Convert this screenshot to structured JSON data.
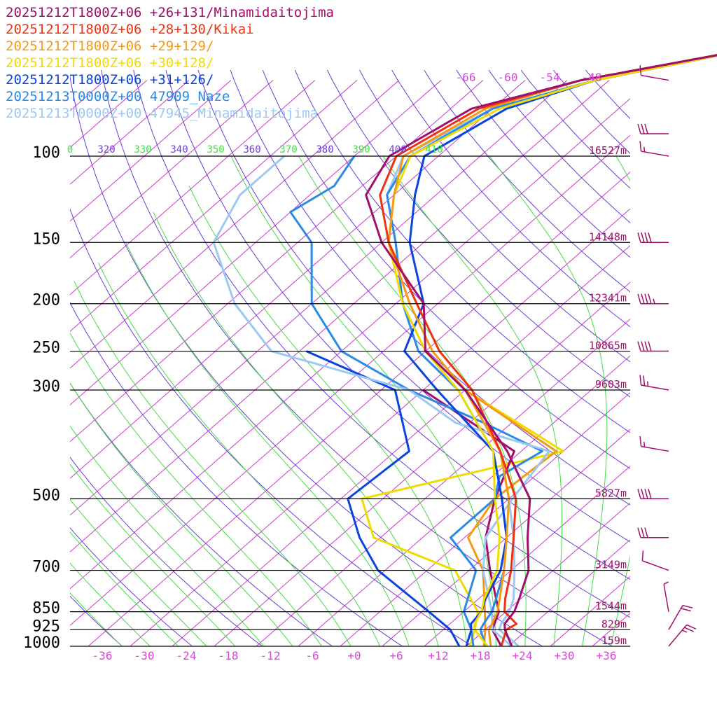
{
  "colors": {
    "isobar": "#000000",
    "isotherm": "#cc33cc",
    "dry_adiabat": "#6a3dd6",
    "moist_adiabat": "#44dd44",
    "height_label": "#a0106a",
    "temp_label": "#dd44dd",
    "wind_barb": "#a0106a"
  },
  "chart_data": {
    "type": "skew-t",
    "pressure_levels": [
      {
        "p": 100,
        "label": "100",
        "height": "16527m"
      },
      {
        "p": 150,
        "label": "150",
        "height": "14148m"
      },
      {
        "p": 200,
        "label": "200",
        "height": "12341m"
      },
      {
        "p": 250,
        "label": "250",
        "height": "10865m"
      },
      {
        "p": 300,
        "label": "300",
        "height": "9603m"
      },
      {
        "p": 500,
        "label": "500",
        "height": "5827m"
      },
      {
        "p": 700,
        "label": "700",
        "height": "3149m"
      },
      {
        "p": 850,
        "label": "850",
        "height": "1544m"
      },
      {
        "p": 925,
        "label": "925",
        "height": "829m"
      },
      {
        "p": 1000,
        "label": "1000",
        "height": "159m"
      }
    ],
    "temperature_ticks": [
      "-36",
      "-30",
      "-24",
      "-18",
      "-12",
      "-6",
      "+0",
      "+6",
      "+12",
      "+18",
      "+24",
      "+30",
      "+36"
    ],
    "temperature_tick_values": [
      -36,
      -30,
      -24,
      -18,
      -12,
      -6,
      0,
      6,
      12,
      18,
      24,
      30,
      36
    ],
    "upper_temperature_labels": [
      "-66",
      "-60",
      "-54",
      "-48"
    ],
    "upper_temperature_values": [
      -66,
      -60,
      -54,
      -48
    ],
    "theta_labels": [
      {
        "text": "0",
        "color": "#44dd44"
      },
      {
        "text": "320",
        "color": "#6a3dd6"
      },
      {
        "text": "330",
        "color": "#44dd44"
      },
      {
        "text": "340",
        "color": "#6a3dd6"
      },
      {
        "text": "350",
        "color": "#44dd44"
      },
      {
        "text": "360",
        "color": "#6a3dd6"
      },
      {
        "text": "370",
        "color": "#44dd44"
      },
      {
        "text": "380",
        "color": "#6a3dd6"
      },
      {
        "text": "390",
        "color": "#44dd44"
      },
      {
        "text": "400",
        "color": "#6a3dd6"
      },
      {
        "text": "410",
        "color": "#44dd44"
      }
    ],
    "dry_adiabats": [
      250,
      260,
      270,
      280,
      290,
      300,
      310,
      320,
      330
    ],
    "moist_adiabats": [
      250,
      260,
      270,
      280,
      290,
      300,
      310
    ],
    "series": [
      {
        "name": "20251212T1800Z+06 +26+131/Minamidaitojima",
        "color": "#a0106a",
        "points": [
          [
            1000,
            22.5
          ],
          [
            925,
            18.8
          ],
          [
            900,
            17.8
          ],
          [
            850,
            17.2
          ],
          [
            800,
            15.8
          ],
          [
            700,
            12.5
          ],
          [
            600,
            7.0
          ],
          [
            500,
            1.0
          ],
          [
            400,
            -10.0
          ],
          [
            300,
            -26.0
          ],
          [
            250,
            -38.0
          ],
          [
            200,
            -46.0
          ],
          [
            150,
            -62.0
          ],
          [
            120,
            -72.0
          ],
          [
            100,
            -75.0
          ],
          [
            80,
            -71.0
          ],
          [
            70,
            -60.0
          ],
          [
            60,
            -40.0
          ]
        ]
      },
      {
        "name": "20251212T1800Z+06 +28+130/Kikai",
        "color": "#ee3311",
        "points": [
          [
            1000,
            21.0
          ],
          [
            925,
            19.0
          ],
          [
            900,
            19.5
          ],
          [
            850,
            15.8
          ],
          [
            800,
            13.8
          ],
          [
            700,
            10.0
          ],
          [
            600,
            5.0
          ],
          [
            500,
            -1.0
          ],
          [
            400,
            -11.0
          ],
          [
            300,
            -25.0
          ],
          [
            250,
            -36.0
          ],
          [
            200,
            -47.0
          ],
          [
            150,
            -61.0
          ],
          [
            120,
            -70.0
          ],
          [
            100,
            -74.0
          ],
          [
            80,
            -70.0
          ],
          [
            70,
            -60.0
          ],
          [
            60,
            -40.0
          ]
        ]
      },
      {
        "name": "20251212T1800Z+06 +29+129/",
        "color": "#f59a14",
        "points": [
          [
            1000,
            19.5
          ],
          [
            925,
            16.5
          ],
          [
            900,
            16.0
          ],
          [
            850,
            14.8
          ],
          [
            800,
            13.0
          ],
          [
            700,
            9.0
          ],
          [
            600,
            4.0
          ],
          [
            500,
            -2.0
          ],
          [
            400,
            -11.0
          ],
          [
            300,
            -26.0
          ],
          [
            250,
            -37.0
          ],
          [
            200,
            -48.0
          ],
          [
            150,
            -61.0
          ],
          [
            120,
            -68.0
          ],
          [
            100,
            -73.0
          ],
          [
            80,
            -69.0
          ],
          [
            70,
            -60.0
          ],
          [
            60,
            -40.0
          ]
        ]
      },
      {
        "name": "20251212T1800Z+06 +30+128/",
        "color": "#f0dc00",
        "points": [
          [
            1000,
            19.0
          ],
          [
            925,
            14.5
          ],
          [
            900,
            13.5
          ],
          [
            850,
            12.5
          ],
          [
            800,
            10.8
          ],
          [
            700,
            8.0
          ],
          [
            600,
            3.0
          ],
          [
            500,
            -4.0
          ],
          [
            400,
            -12.0
          ],
          [
            300,
            -27.0
          ],
          [
            250,
            -38.0
          ],
          [
            200,
            -49.0
          ],
          [
            150,
            -61.0
          ],
          [
            120,
            -68.0
          ],
          [
            100,
            -72.0
          ],
          [
            80,
            -67.0
          ],
          [
            70,
            -58.0
          ],
          [
            60,
            -40.0
          ]
        ]
      },
      {
        "name": "20251212T1800Z+06 +31+126/",
        "color": "#0a44e0",
        "points": [
          [
            1000,
            16.0
          ],
          [
            925,
            14.0
          ],
          [
            900,
            13.0
          ],
          [
            850,
            12.5
          ],
          [
            800,
            11.0
          ],
          [
            700,
            8.5
          ],
          [
            600,
            4.0
          ],
          [
            500,
            -3.0
          ],
          [
            400,
            -12.0
          ],
          [
            300,
            -30.0
          ],
          [
            250,
            -41.0
          ],
          [
            200,
            -46.0
          ],
          [
            150,
            -58.0
          ],
          [
            120,
            -65.0
          ],
          [
            100,
            -70.0
          ],
          [
            80,
            -66.0
          ],
          [
            70,
            -58.0
          ],
          [
            60,
            -40.0
          ]
        ]
      },
      {
        "name": "20251213T0000Z+00 47909_Naze",
        "color": "#2a8ae8",
        "points": [
          [
            1000,
            18.8
          ],
          [
            925,
            15.3
          ],
          [
            900,
            14.8
          ],
          [
            850,
            14.0
          ],
          [
            800,
            12.5
          ],
          [
            700,
            9.0
          ],
          [
            600,
            4.0
          ],
          [
            500,
            -3.0
          ],
          [
            400,
            -12.0
          ],
          [
            300,
            -27.0
          ],
          [
            250,
            -39.0
          ],
          [
            200,
            -49.0
          ],
          [
            150,
            -60.0
          ],
          [
            120,
            -69.0
          ],
          [
            100,
            -72.0
          ],
          [
            80,
            -68.0
          ],
          [
            70,
            -58.0
          ],
          [
            60,
            -40.0
          ]
        ]
      },
      {
        "name": "20251213T0000Z+00 47945_Minamidaitojima",
        "color": "#9cc8f2",
        "points": [
          [
            1000,
            23.5
          ],
          [
            925,
            18.0
          ],
          [
            900,
            17.3
          ],
          [
            850,
            16.5
          ],
          [
            800,
            15.0
          ],
          [
            700,
            10.5
          ],
          [
            600,
            5.0
          ],
          [
            500,
            -2.0
          ],
          [
            400,
            -11.0
          ],
          [
            300,
            -26.0
          ],
          [
            250,
            -38.0
          ],
          [
            200,
            -49.0
          ],
          [
            150,
            -60.0
          ],
          [
            120,
            -69.0
          ],
          [
            100,
            -73.0
          ],
          [
            80,
            -68.0
          ],
          [
            70,
            -58.0
          ],
          [
            60,
            -40.0
          ]
        ]
      }
    ],
    "dewpoint_series": [
      {
        "name": "20251212T1800Z+06 +31+126/",
        "color": "#0a44e0",
        "points": [
          [
            1000,
            15.0
          ],
          [
            925,
            11.0
          ],
          [
            850,
            5.0
          ],
          [
            700,
            -9.0
          ],
          [
            600,
            -17.0
          ],
          [
            500,
            -25.0
          ],
          [
            400,
            -24.0
          ],
          [
            300,
            -36.0
          ],
          [
            250,
            -55.0
          ]
        ]
      },
      {
        "name": "20251212T1800Z+06 +30+128/",
        "color": "#f0dc00",
        "points": [
          [
            1000,
            16.5
          ],
          [
            925,
            14.5
          ],
          [
            850,
            12.0
          ],
          [
            700,
            2.0
          ],
          [
            600,
            -15.0
          ],
          [
            500,
            -23.0
          ],
          [
            400,
            -2.0
          ],
          [
            300,
            -26.0
          ]
        ]
      },
      {
        "name": "20251212T1800Z+06 +29+129/",
        "color": "#f59a14",
        "points": [
          [
            1000,
            18.5
          ],
          [
            925,
            16.0
          ],
          [
            850,
            13.0
          ],
          [
            700,
            6.0
          ],
          [
            600,
            -1.5
          ],
          [
            500,
            -4.0
          ],
          [
            400,
            -3.0
          ],
          [
            300,
            -26.0
          ]
        ]
      },
      {
        "name": "20251212T1800Z+06 +26+131/Minamidaitojima",
        "color": "#a0106a",
        "points": [
          [
            1000,
            21.0
          ],
          [
            925,
            17.0
          ],
          [
            850,
            15.0
          ],
          [
            700,
            7.0
          ],
          [
            600,
            1.0
          ],
          [
            500,
            -4.0
          ],
          [
            400,
            -9.0
          ],
          [
            300,
            -32.0
          ]
        ]
      },
      {
        "name": "20251213T0000Z+00 47909_Naze",
        "color": "#2a8ae8",
        "points": [
          [
            1000,
            17.0
          ],
          [
            925,
            14.0
          ],
          [
            850,
            10.0
          ],
          [
            700,
            5.0
          ],
          [
            600,
            -4.0
          ],
          [
            500,
            -4.0
          ],
          [
            450,
            -7.0
          ],
          [
            400,
            -5.0
          ],
          [
            350,
            -18.0
          ],
          [
            300,
            -34.0
          ],
          [
            250,
            -50.0
          ],
          [
            200,
            -62.0
          ],
          [
            150,
            -72.0
          ],
          [
            130,
            -80.0
          ],
          [
            115,
            -78.0
          ],
          [
            100,
            -80.0
          ]
        ]
      },
      {
        "name": "20251213T0000Z+00 47945_Minamidaitojima",
        "color": "#9cc8f2",
        "points": [
          [
            1000,
            22.5
          ],
          [
            925,
            17.0
          ],
          [
            850,
            14.0
          ],
          [
            700,
            6.0
          ],
          [
            600,
            1.0
          ],
          [
            500,
            -1.5
          ],
          [
            400,
            -4.0
          ],
          [
            350,
            -22.0
          ],
          [
            300,
            -34.0
          ],
          [
            250,
            -60.0
          ],
          [
            200,
            -73.0
          ],
          [
            150,
            -86.0
          ],
          [
            120,
            -90.0
          ],
          [
            100,
            -90.0
          ]
        ]
      }
    ],
    "wind_barbs": [
      {
        "p": 70,
        "speed_kt": 10,
        "dir": 280
      },
      {
        "p": 90,
        "speed_kt": 30,
        "dir": 270
      },
      {
        "p": 100,
        "speed_kt": 15,
        "dir": 280
      },
      {
        "p": 150,
        "speed_kt": 40,
        "dir": 270
      },
      {
        "p": 200,
        "speed_kt": 45,
        "dir": 270
      },
      {
        "p": 250,
        "speed_kt": 40,
        "dir": 270
      },
      {
        "p": 300,
        "speed_kt": 25,
        "dir": 280
      },
      {
        "p": 400,
        "speed_kt": 15,
        "dir": 280
      },
      {
        "p": 500,
        "speed_kt": 40,
        "dir": 270
      },
      {
        "p": 600,
        "speed_kt": 30,
        "dir": 270
      },
      {
        "p": 700,
        "speed_kt": 10,
        "dir": 290
      },
      {
        "p": 850,
        "speed_kt": 5,
        "dir": 350
      },
      {
        "p": 925,
        "speed_kt": 20,
        "dir": 30
      },
      {
        "p": 1000,
        "speed_kt": 25,
        "dir": 40
      }
    ]
  }
}
